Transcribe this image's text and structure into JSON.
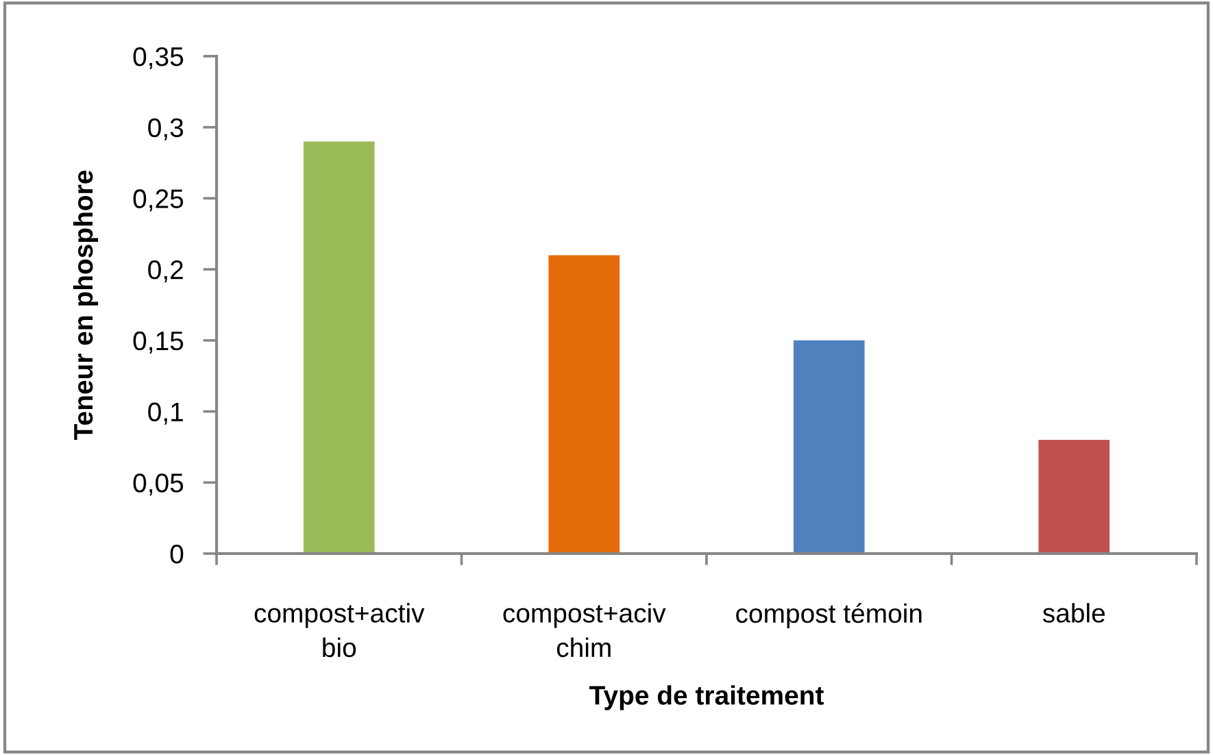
{
  "chart_data": {
    "type": "bar",
    "xlabel": "Type de traitement",
    "ylabel": "Teneur en phosphore",
    "categories": [
      "compost+activ\nbio",
      "compost+aciv\nchim",
      "compost témoin",
      "sable"
    ],
    "values": [
      0.29,
      0.21,
      0.15,
      0.08
    ],
    "colors": [
      "#9bbb59",
      "#e46c0a",
      "#4f81bd",
      "#c0504d"
    ],
    "ylim": [
      0,
      0.35
    ],
    "yticks": [
      0,
      {
        "value": 0.05,
        "label": "0,05"
      },
      {
        "value": 0.1,
        "label": "0,1"
      },
      {
        "value": 0.15,
        "label": "0,15"
      },
      {
        "value": 0.2,
        "label": "0,2"
      },
      {
        "value": 0.25,
        "label": "0,25"
      },
      {
        "value": 0.3,
        "label": "0,3"
      },
      {
        "value": 0.35,
        "label": "0,35"
      }
    ]
  }
}
